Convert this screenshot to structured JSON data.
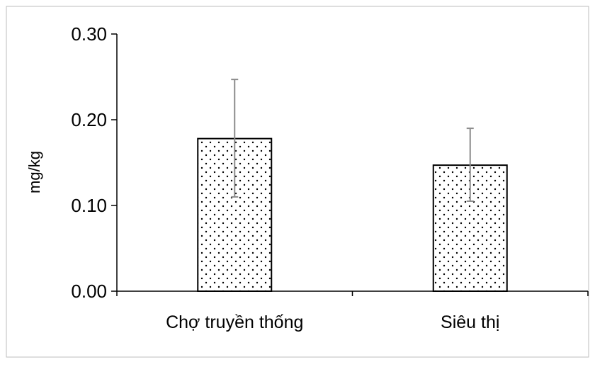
{
  "chart_data": {
    "type": "bar",
    "title": "",
    "xlabel": "",
    "ylabel": "mg/kg",
    "categories": [
      "Chợ truyền thống",
      "Siêu thị"
    ],
    "values": [
      0.178,
      0.147
    ],
    "error_low": [
      0.11,
      0.105
    ],
    "error_high": [
      0.247,
      0.19
    ],
    "ylim": [
      0,
      0.3
    ],
    "yticks": [
      0.0,
      0.1,
      0.2,
      0.3
    ],
    "ytick_labels": [
      "0.00",
      "0.10",
      "0.20",
      "0.30"
    ],
    "grid": false,
    "legend": "none",
    "bar_fill": "dotted",
    "colors": {
      "bar_fill": "#ffffff",
      "bar_stroke": "#000000",
      "dots": "#000000",
      "error_bar": "#8c8c8c",
      "axis": "#000000"
    }
  }
}
